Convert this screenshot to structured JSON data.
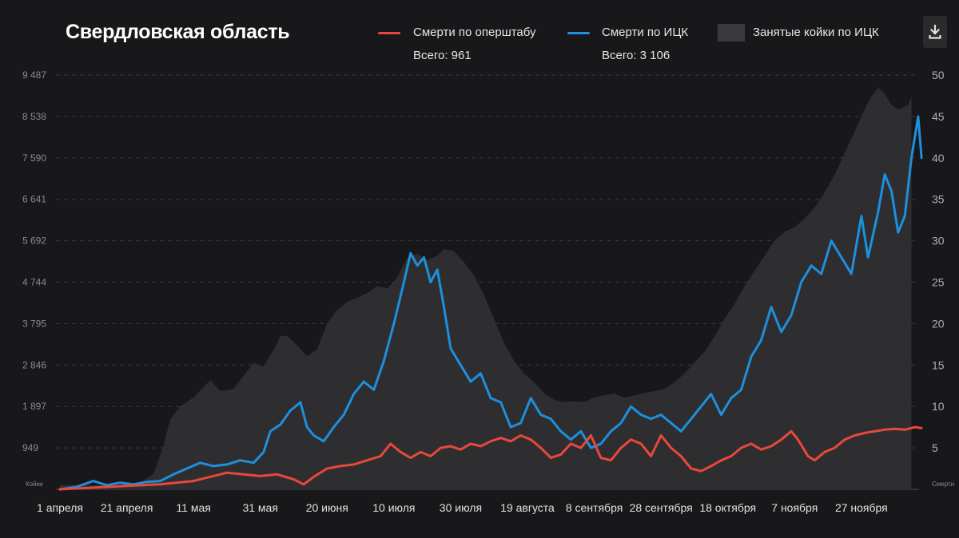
{
  "title": "Свердловская область",
  "legend": {
    "operstab_label": "Смерти по оперштабу",
    "operstab_total": "Всего: 961",
    "ick_label": "Смерти по ИЦК",
    "ick_total": "Всего: 3 106",
    "beds_label": "Занятые койки по ИЦК"
  },
  "colors": {
    "operstab": "#e8483c",
    "ick": "#1e8fdc",
    "beds": "#2e2e30",
    "background": "#18181a",
    "grid": "#3a3a3c"
  },
  "download_icon": "download-icon",
  "chart_data": {
    "type": "line",
    "x_label_ticks": [
      "1 апреля",
      "21 апреля",
      "11 мая",
      "31 мая",
      "20 июня",
      "10 июля",
      "30 июля",
      "19 августа",
      "8 сентября",
      "28 сентября",
      "18 октября",
      "7 ноября",
      "27 ноября"
    ],
    "left_axis": {
      "unit_label": "Койки",
      "ticks": [
        "949",
        "1 897",
        "2 846",
        "3 795",
        "4 744",
        "5 692",
        "6 641",
        "7 590",
        "8 538",
        "9 487"
      ],
      "range": [
        0,
        9487
      ]
    },
    "right_axis": {
      "unit_label": "Смерти",
      "ticks": [
        "5",
        "10",
        "15",
        "20",
        "25",
        "30",
        "35",
        "40",
        "45",
        "50"
      ],
      "range": [
        0,
        50
      ]
    },
    "grid": true,
    "series": [
      {
        "name": "Занятые койки по ИЦК",
        "kind": "area",
        "axis": "left",
        "points": [
          [
            0,
            100
          ],
          [
            10,
            90
          ],
          [
            18,
            110
          ],
          [
            24,
            150
          ],
          [
            28,
            350
          ],
          [
            31,
            1000
          ],
          [
            33,
            1600
          ],
          [
            36,
            1900
          ],
          [
            40,
            2100
          ],
          [
            45,
            2500
          ],
          [
            48,
            2250
          ],
          [
            52,
            2300
          ],
          [
            55,
            2600
          ],
          [
            58,
            2900
          ],
          [
            61,
            2800
          ],
          [
            64,
            3200
          ],
          [
            66,
            3500
          ],
          [
            68,
            3520
          ],
          [
            71,
            3300
          ],
          [
            74,
            3050
          ],
          [
            77,
            3200
          ],
          [
            80,
            3800
          ],
          [
            83,
            4100
          ],
          [
            86,
            4300
          ],
          [
            89,
            4380
          ],
          [
            92,
            4500
          ],
          [
            95,
            4650
          ],
          [
            98,
            4600
          ],
          [
            101,
            4850
          ],
          [
            104,
            5300
          ],
          [
            107,
            5400
          ],
          [
            110,
            5250
          ],
          [
            113,
            5350
          ],
          [
            115,
            5500
          ],
          [
            118,
            5450
          ],
          [
            121,
            5200
          ],
          [
            124,
            4900
          ],
          [
            127,
            4450
          ],
          [
            130,
            3900
          ],
          [
            133,
            3350
          ],
          [
            136,
            2950
          ],
          [
            139,
            2650
          ],
          [
            142,
            2450
          ],
          [
            145,
            2200
          ],
          [
            148,
            2050
          ],
          [
            151,
            2000
          ],
          [
            154,
            2020
          ],
          [
            157,
            2000
          ],
          [
            160,
            2100
          ],
          [
            163,
            2150
          ],
          [
            166,
            2200
          ],
          [
            169,
            2100
          ],
          [
            172,
            2150
          ],
          [
            175,
            2200
          ],
          [
            178,
            2250
          ],
          [
            181,
            2300
          ],
          [
            184,
            2450
          ],
          [
            187,
            2650
          ],
          [
            190,
            2900
          ],
          [
            193,
            3150
          ],
          [
            196,
            3500
          ],
          [
            199,
            3900
          ],
          [
            202,
            4250
          ],
          [
            205,
            4650
          ],
          [
            208,
            5000
          ],
          [
            211,
            5350
          ],
          [
            214,
            5700
          ],
          [
            217,
            5900
          ],
          [
            220,
            6000
          ],
          [
            223,
            6200
          ],
          [
            226,
            6450
          ],
          [
            229,
            6800
          ],
          [
            232,
            7200
          ],
          [
            235,
            7700
          ],
          [
            238,
            8200
          ],
          [
            241,
            8700
          ],
          [
            243,
            9000
          ],
          [
            245,
            9200
          ],
          [
            247,
            9050
          ],
          [
            249,
            8800
          ],
          [
            251,
            8700
          ],
          [
            254,
            8800
          ],
          [
            255,
            9000
          ]
        ]
      },
      {
        "name": "Смерти по ИЦК",
        "kind": "line",
        "axis": "right",
        "points": [
          [
            0,
            0
          ],
          [
            5,
            0.3
          ],
          [
            10,
            1.0
          ],
          [
            14,
            0.5
          ],
          [
            18,
            0.8
          ],
          [
            22,
            0.6
          ],
          [
            26,
            0.9
          ],
          [
            30,
            1.0
          ],
          [
            34,
            1.8
          ],
          [
            38,
            2.5
          ],
          [
            42,
            3.2
          ],
          [
            46,
            2.8
          ],
          [
            50,
            3.0
          ],
          [
            54,
            3.5
          ],
          [
            58,
            3.2
          ],
          [
            61,
            4.5
          ],
          [
            63,
            7.0
          ],
          [
            66,
            7.8
          ],
          [
            69,
            9.5
          ],
          [
            72,
            10.5
          ],
          [
            74,
            7.5
          ],
          [
            76,
            6.5
          ],
          [
            79,
            5.8
          ],
          [
            82,
            7.5
          ],
          [
            85,
            9.0
          ],
          [
            88,
            11.5
          ],
          [
            91,
            13.0
          ],
          [
            94,
            12.0
          ],
          [
            97,
            15.5
          ],
          [
            100,
            20.0
          ],
          [
            103,
            25.0
          ],
          [
            105,
            28.5
          ],
          [
            107,
            27.0
          ],
          [
            109,
            28.0
          ],
          [
            111,
            25.0
          ],
          [
            113,
            26.5
          ],
          [
            115,
            22.0
          ],
          [
            117,
            17.0
          ],
          [
            120,
            15.0
          ],
          [
            123,
            13.0
          ],
          [
            126,
            14.0
          ],
          [
            129,
            11.0
          ],
          [
            132,
            10.5
          ],
          [
            135,
            7.5
          ],
          [
            138,
            8.0
          ],
          [
            141,
            11.0
          ],
          [
            144,
            9.0
          ],
          [
            147,
            8.5
          ],
          [
            150,
            7.0
          ],
          [
            153,
            6.0
          ],
          [
            156,
            7.0
          ],
          [
            159,
            5.0
          ],
          [
            162,
            5.5
          ],
          [
            165,
            7.0
          ],
          [
            168,
            8.0
          ],
          [
            171,
            10.0
          ],
          [
            174,
            9.0
          ],
          [
            177,
            8.5
          ],
          [
            180,
            9.0
          ],
          [
            183,
            8.0
          ],
          [
            186,
            7.0
          ],
          [
            189,
            8.5
          ],
          [
            192,
            10.0
          ],
          [
            195,
            11.5
          ],
          [
            198,
            9.0
          ],
          [
            201,
            11.0
          ],
          [
            204,
            12.0
          ],
          [
            207,
            16.0
          ],
          [
            210,
            18.0
          ],
          [
            213,
            22.0
          ],
          [
            216,
            19.0
          ],
          [
            219,
            21.0
          ],
          [
            222,
            25.0
          ],
          [
            225,
            27.0
          ],
          [
            228,
            26.0
          ],
          [
            231,
            30.0
          ],
          [
            234,
            28.0
          ],
          [
            237,
            26.0
          ],
          [
            240,
            33.0
          ],
          [
            242,
            28.0
          ],
          [
            245,
            33.5
          ],
          [
            247,
            38.0
          ],
          [
            249,
            36.0
          ],
          [
            251,
            31.0
          ],
          [
            253,
            33.0
          ],
          [
            255,
            40.0
          ],
          [
            257,
            45.0
          ],
          [
            258,
            40.0
          ]
        ]
      },
      {
        "name": "Смерти по оперштабу",
        "kind": "line",
        "axis": "right",
        "points": [
          [
            0,
            0
          ],
          [
            10,
            0.2
          ],
          [
            20,
            0.4
          ],
          [
            30,
            0.6
          ],
          [
            40,
            1.0
          ],
          [
            45,
            1.5
          ],
          [
            50,
            2.0
          ],
          [
            55,
            1.8
          ],
          [
            60,
            1.6
          ],
          [
            65,
            1.8
          ],
          [
            70,
            1.2
          ],
          [
            73,
            0.6
          ],
          [
            76,
            1.5
          ],
          [
            80,
            2.5
          ],
          [
            84,
            2.8
          ],
          [
            88,
            3.0
          ],
          [
            92,
            3.5
          ],
          [
            96,
            4.0
          ],
          [
            99,
            5.5
          ],
          [
            102,
            4.5
          ],
          [
            105,
            3.8
          ],
          [
            108,
            4.5
          ],
          [
            111,
            4.0
          ],
          [
            114,
            5.0
          ],
          [
            117,
            5.2
          ],
          [
            120,
            4.8
          ],
          [
            123,
            5.5
          ],
          [
            126,
            5.2
          ],
          [
            129,
            5.8
          ],
          [
            132,
            6.2
          ],
          [
            135,
            5.8
          ],
          [
            138,
            6.5
          ],
          [
            141,
            6.0
          ],
          [
            144,
            5.0
          ],
          [
            147,
            3.8
          ],
          [
            150,
            4.2
          ],
          [
            153,
            5.5
          ],
          [
            156,
            5.0
          ],
          [
            159,
            6.5
          ],
          [
            162,
            3.8
          ],
          [
            165,
            3.5
          ],
          [
            168,
            5.0
          ],
          [
            171,
            6.0
          ],
          [
            174,
            5.5
          ],
          [
            177,
            4.0
          ],
          [
            180,
            6.5
          ],
          [
            183,
            5.0
          ],
          [
            186,
            4.0
          ],
          [
            189,
            2.5
          ],
          [
            192,
            2.2
          ],
          [
            195,
            2.8
          ],
          [
            198,
            3.5
          ],
          [
            201,
            4.0
          ],
          [
            204,
            5.0
          ],
          [
            207,
            5.5
          ],
          [
            210,
            4.8
          ],
          [
            213,
            5.2
          ],
          [
            216,
            6.0
          ],
          [
            219,
            7.0
          ],
          [
            221,
            6.0
          ],
          [
            224,
            4.0
          ],
          [
            226,
            3.5
          ],
          [
            229,
            4.5
          ],
          [
            232,
            5.0
          ],
          [
            235,
            6.0
          ],
          [
            238,
            6.5
          ],
          [
            241,
            6.8
          ],
          [
            244,
            7.0
          ],
          [
            247,
            7.2
          ],
          [
            250,
            7.3
          ],
          [
            253,
            7.2
          ],
          [
            256,
            7.5
          ],
          [
            258,
            7.4
          ]
        ]
      }
    ]
  }
}
